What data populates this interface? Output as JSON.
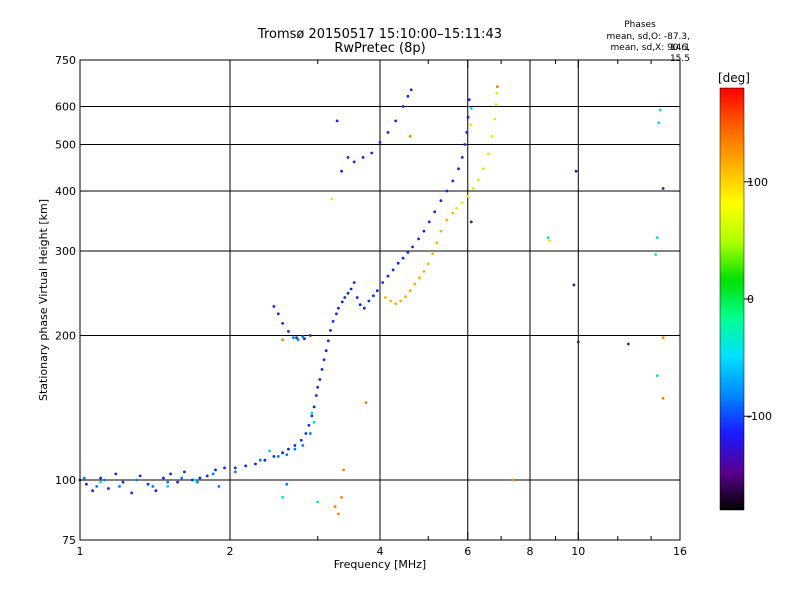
{
  "header": {
    "title": "Tromsø 20150517 15:10:00–15:11:43",
    "subtitle": "RwPretec (8p)",
    "phases_title": "Phases",
    "phase_o": "mean, sd,O: -87.3, 14.1",
    "phase_x": "mean, sd,X:  90.6, 15.5"
  },
  "colorbar": {
    "unit": "[deg]",
    "ticks": [
      {
        "value": 100,
        "label": "100"
      },
      {
        "value": 0,
        "label": "0"
      },
      {
        "value": -100,
        "label": "-100"
      }
    ],
    "range": [
      -180,
      180
    ],
    "colors": [
      "#000000",
      "#5a0090",
      "#1a1aff",
      "#0088ff",
      "#00e0ff",
      "#00ff90",
      "#00e000",
      "#b0ff00",
      "#ffff00",
      "#ffb000",
      "#ff6000",
      "#ff0000"
    ]
  },
  "chart_data": {
    "type": "scatter",
    "xlabel": "Frequency [MHz]",
    "ylabel": "Stationary phase Virtual Height [km]",
    "xscale": "log",
    "yscale": "log",
    "xlim": [
      1,
      16
    ],
    "ylim": [
      75,
      750
    ],
    "xticks": [
      {
        "value": 1,
        "label": "1"
      },
      {
        "value": 2,
        "label": "2"
      },
      {
        "value": 4,
        "label": "4"
      },
      {
        "value": 6,
        "label": "6"
      },
      {
        "value": 8,
        "label": "8"
      },
      {
        "value": 10,
        "label": "10"
      },
      {
        "value": 16,
        "label": "16"
      }
    ],
    "xminor": [
      3,
      5,
      7,
      9,
      12,
      14
    ],
    "xgrid": [
      2,
      4,
      6,
      8,
      10
    ],
    "yticks": [
      {
        "value": 75,
        "label": "75"
      },
      {
        "value": 100,
        "label": "100"
      },
      {
        "value": 200,
        "label": "200"
      },
      {
        "value": 300,
        "label": "300"
      },
      {
        "value": 400,
        "label": "400"
      },
      {
        "value": 500,
        "label": "500"
      },
      {
        "value": 600,
        "label": "600"
      },
      {
        "value": 750,
        "label": "750"
      }
    ],
    "ygrid": [
      100,
      200,
      300,
      400,
      500,
      600
    ],
    "series": [
      {
        "points": [
          [
            1.0,
            100
          ],
          [
            1.03,
            98
          ],
          [
            1.06,
            95
          ],
          [
            1.1,
            101
          ],
          [
            1.14,
            96
          ],
          [
            1.18,
            103
          ],
          [
            1.22,
            99
          ],
          [
            1.27,
            94
          ],
          [
            1.32,
            102
          ],
          [
            1.37,
            98
          ],
          [
            1.42,
            95
          ],
          [
            1.47,
            101
          ],
          [
            1.52,
            103
          ],
          [
            1.57,
            99
          ],
          [
            1.62,
            104
          ],
          [
            1.68,
            100
          ],
          [
            1.74,
            101
          ],
          [
            1.8,
            102
          ],
          [
            1.87,
            105
          ],
          [
            1.95,
            106
          ],
          [
            2.05,
            106
          ],
          [
            2.15,
            107
          ],
          [
            2.25,
            108
          ],
          [
            2.35,
            110
          ],
          [
            2.45,
            112
          ],
          [
            2.55,
            114
          ],
          [
            2.62,
            116
          ],
          [
            2.7,
            118
          ],
          [
            2.78,
            121
          ],
          [
            2.84,
            125
          ],
          [
            2.88,
            130
          ],
          [
            2.92,
            136
          ],
          [
            2.95,
            142
          ],
          [
            2.98,
            150
          ],
          [
            3.0,
            156
          ],
          [
            3.03,
            162
          ],
          [
            3.06,
            170
          ],
          [
            3.09,
            178
          ],
          [
            3.12,
            186
          ],
          [
            3.15,
            195
          ],
          [
            3.18,
            205
          ],
          [
            3.22,
            214
          ],
          [
            3.27,
            222
          ],
          [
            3.3,
            228
          ],
          [
            3.36,
            235
          ],
          [
            3.4,
            240
          ],
          [
            3.45,
            245
          ],
          [
            3.5,
            250
          ],
          [
            3.55,
            258
          ],
          [
            3.6,
            240
          ],
          [
            3.65,
            232
          ],
          [
            3.72,
            228
          ],
          [
            3.8,
            236
          ],
          [
            3.88,
            242
          ],
          [
            3.95,
            248
          ],
          [
            4.05,
            258
          ],
          [
            4.15,
            266
          ],
          [
            4.25,
            274
          ],
          [
            4.35,
            283
          ],
          [
            4.45,
            290
          ],
          [
            4.55,
            298
          ],
          [
            4.65,
            306
          ],
          [
            4.78,
            318
          ],
          [
            4.9,
            330
          ],
          [
            5.02,
            345
          ],
          [
            5.15,
            362
          ],
          [
            5.3,
            382
          ],
          [
            5.45,
            400
          ],
          [
            5.6,
            420
          ],
          [
            5.75,
            445
          ],
          [
            5.85,
            470
          ],
          [
            5.92,
            500
          ],
          [
            5.97,
            530
          ],
          [
            6.01,
            570
          ],
          [
            6.04,
            620
          ],
          [
            3.28,
            560
          ],
          [
            3.35,
            440
          ],
          [
            3.45,
            470
          ],
          [
            3.55,
            460
          ],
          [
            3.7,
            470
          ],
          [
            3.85,
            480
          ],
          [
            4.0,
            505
          ],
          [
            4.15,
            530
          ],
          [
            4.3,
            560
          ],
          [
            4.45,
            600
          ],
          [
            4.55,
            630
          ],
          [
            4.62,
            650
          ],
          [
            2.45,
            230
          ],
          [
            2.5,
            222
          ],
          [
            2.55,
            212
          ],
          [
            2.62,
            204
          ],
          [
            2.72,
            198
          ],
          [
            2.82,
            197
          ],
          [
            2.9,
            200
          ]
        ],
        "color": "#0a28e6"
      },
      {
        "points": [
          [
            1.02,
            101
          ],
          [
            1.08,
            97
          ],
          [
            1.12,
            100
          ],
          [
            1.2,
            97
          ],
          [
            1.3,
            100
          ],
          [
            1.4,
            97
          ],
          [
            1.5,
            99
          ],
          [
            1.6,
            101
          ],
          [
            1.72,
            99
          ],
          [
            1.85,
            103
          ],
          [
            2.05,
            104
          ],
          [
            2.3,
            110
          ],
          [
            2.5,
            112
          ],
          [
            2.6,
            113
          ],
          [
            2.7,
            116
          ],
          [
            2.8,
            118
          ],
          [
            2.9,
            125
          ],
          [
            2.68,
            198
          ],
          [
            2.74,
            196
          ],
          [
            2.8,
            199
          ],
          [
            2.6,
            98
          ],
          [
            1.9,
            97
          ]
        ],
        "color": "#0078ff"
      },
      {
        "points": [
          [
            1.1,
            99
          ],
          [
            1.5,
            97
          ],
          [
            1.7,
            100
          ],
          [
            2.4,
            115
          ],
          [
            2.92,
            138
          ],
          [
            2.55,
            92
          ],
          [
            2.95,
            132
          ],
          [
            3.0,
            90
          ],
          [
            14.5,
            555
          ],
          [
            14.6,
            590
          ],
          [
            14.4,
            320
          ],
          [
            14.3,
            295
          ],
          [
            14.4,
            165
          ],
          [
            8.7,
            320
          ],
          [
            6.1,
            595
          ]
        ],
        "color": "#00d8f0"
      },
      {
        "points": [
          [
            4.1,
            240
          ],
          [
            4.2,
            236
          ],
          [
            4.3,
            233
          ],
          [
            4.4,
            236
          ],
          [
            4.5,
            241
          ],
          [
            4.6,
            248
          ],
          [
            4.7,
            256
          ],
          [
            4.8,
            264
          ],
          [
            4.9,
            272
          ],
          [
            5.0,
            282
          ],
          [
            5.1,
            296
          ],
          [
            5.2,
            312
          ],
          [
            5.3,
            330
          ],
          [
            5.45,
            348
          ],
          [
            5.6,
            360
          ]
        ],
        "color": "#ffb000"
      },
      {
        "points": [
          [
            5.7,
            368
          ],
          [
            5.85,
            378
          ],
          [
            6.0,
            390
          ],
          [
            6.15,
            405
          ],
          [
            6.3,
            422
          ],
          [
            6.45,
            445
          ],
          [
            6.6,
            478
          ],
          [
            6.72,
            520
          ],
          [
            6.8,
            565
          ],
          [
            6.84,
            605
          ],
          [
            6.86,
            640
          ],
          [
            8.75,
            315
          ],
          [
            3.2,
            385
          ],
          [
            6.08,
            550
          ]
        ],
        "color": "#e8e800"
      },
      {
        "points": [
          [
            3.3,
            85
          ],
          [
            3.35,
            92
          ],
          [
            3.38,
            105
          ],
          [
            3.75,
            145
          ],
          [
            6.88,
            660
          ],
          [
            14.8,
            148
          ],
          [
            14.8,
            198
          ],
          [
            4.6,
            520
          ],
          [
            2.55,
            196
          ],
          [
            7.4,
            100
          ],
          [
            3.25,
            88
          ]
        ],
        "color": "#ff8000"
      },
      {
        "points": [
          [
            9.9,
            440
          ],
          [
            10.0,
            194
          ],
          [
            14.8,
            405
          ],
          [
            12.6,
            192
          ],
          [
            9.8,
            255
          ],
          [
            6.1,
            345
          ]
        ],
        "color": "#282878"
      }
    ]
  }
}
